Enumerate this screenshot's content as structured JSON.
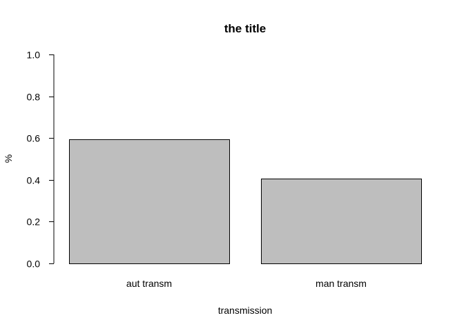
{
  "chart_data": {
    "type": "bar",
    "title": "the title",
    "xlabel": "transmission",
    "ylabel": "%",
    "categories": [
      "aut transm",
      "man transm"
    ],
    "values": [
      0.59375,
      0.40625
    ],
    "ylim": [
      0,
      1
    ],
    "yticks": [
      "0.0",
      "0.2",
      "0.4",
      "0.6",
      "0.8",
      "1.0"
    ],
    "grid": false,
    "bar_color": "#bebebe",
    "bar_border_color": "#000000"
  }
}
